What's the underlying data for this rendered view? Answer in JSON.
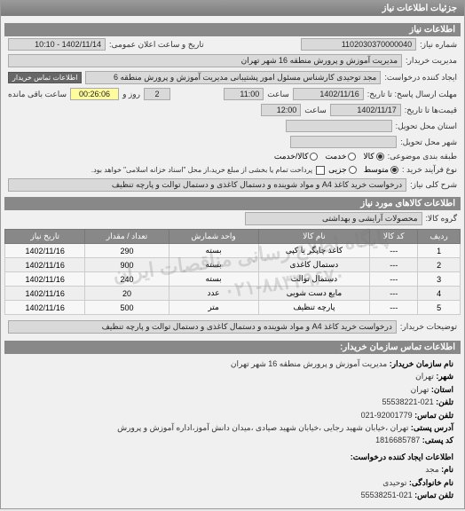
{
  "window_title": "جزئیات اطلاعات نیاز",
  "sections": {
    "need_info": "اطلاعات نیاز",
    "items_info": "اطلاعات کالاهای مورد نیاز",
    "contact_info": "اطلاعات تماس سازمان خریدار:"
  },
  "labels": {
    "request_no": "شماره نیاز:",
    "announce_dt": "تاریخ و ساعت اعلان عمومی:",
    "buyer_mgmt": "مدیریت خریدار:",
    "request_creator": "ایجاد کننده درخواست:",
    "reply_deadline": "مهلت ارسال پاسخ: تا تاریخ:",
    "validity": "قیمت‌ها تا تاریخ:",
    "province": "استان محل تحویل:",
    "city": "شهر محل تحویل:",
    "pkg_class": "طبقه بندی موضوعی:",
    "purchase_type": "نوع فرآیند خرید :",
    "main_desc": "شرح کلی نیاز:",
    "goods_group": "گروه کالا:",
    "buyer_notes": "توضیحات خریدار:",
    "hour": "ساعت",
    "day_and": "روز و",
    "time_left": "ساعت باقی مانده",
    "contact_link": "اطلاعات تماس خریدار"
  },
  "values": {
    "request_no": "1102030370000040",
    "announce_dt": "1402/11/14 - 10:10",
    "buyer_mgmt": "مدیریت آموزش و پرورش منطقه 16 شهر تهران",
    "request_creator": "مجد توحیدی کارشناس مسئول امور پشتیبانی مدیریت آموزش و پرورش منطقه 6",
    "deadline_date": "1402/11/16",
    "deadline_time": "11:00",
    "days_left": "2",
    "time_left": "00:26:06",
    "validity_date": "1402/11/17",
    "validity_time": "12:00",
    "province": "",
    "city": "",
    "purchase_note": "پرداخت تمام یا بخشی از مبلغ خرید،از محل \"اسناد خزانه اسلامی\" خواهد بود.",
    "main_desc": "درخواست خرید کاغذ A4 و مواد شوینده و دستمال کاغذی و دستمال توالت و پارچه تنظیف",
    "goods_group": "محصولات آرایشی و بهداشتی",
    "buyer_notes": "درخواست خرید کاغذ A4 و مواد شوینده و دستمال کاغذی و دستمال توالت و پارچه تنظیف"
  },
  "pkg_options": [
    "کالا",
    "خدمت",
    "کالا/خدمت"
  ],
  "pkg_selected": 0,
  "ptype_options": [
    "متوسط",
    "جزیی"
  ],
  "ptype_selected": 0,
  "table": {
    "headers": [
      "ردیف",
      "کد کالا",
      "نام کالا",
      "واحد شمارش",
      "تعداد / مقدار",
      "تاریخ نیاز"
    ],
    "rows": [
      [
        "1",
        "---",
        "کاغذ چاپگر یا کپی",
        "بسته",
        "290",
        "1402/11/16"
      ],
      [
        "2",
        "---",
        "دستمال کاغذی",
        "بسته",
        "900",
        "1402/11/16"
      ],
      [
        "3",
        "---",
        "دستمال توالت",
        "بسته",
        "240",
        "1402/11/16"
      ],
      [
        "4",
        "---",
        "مایع دست شویی",
        "عدد",
        "20",
        "1402/11/16"
      ],
      [
        "5",
        "---",
        "پارچه تنظیف",
        "متر",
        "500",
        "1402/11/16"
      ]
    ]
  },
  "contact": {
    "org_name_lbl": "نام سازمان خریدار:",
    "org_name": "مدیریت آموزش و پرورش منطقه 16 شهر تهران",
    "city_lbl": "شهر:",
    "city": "تهران",
    "province_lbl": "استان:",
    "province": "تهران",
    "phone_lbl": "تلفن:",
    "phone": "021-55538221",
    "fax_lbl": "تلفن تماس:",
    "fax": "92001779-021",
    "addr_lbl": "آدرس پستی:",
    "addr": "تهران ،خیابان شهید رجایی ،خیابان شهید صیادی ،میدان دانش آموز،اداره آموزش و پرورش",
    "post_lbl": "کد پستی:",
    "post": "1816685787",
    "creator_hdr": "اطلاعات ایجاد کننده درخواست:",
    "name_lbl": "نام:",
    "name": "مجد",
    "family_lbl": "نام خانوادگی:",
    "family": "توحیدی",
    "cphone_lbl": "تلفن تماس:",
    "cphone": "021-55538251"
  },
  "watermark": {
    "line1": "پایگاه اطلاع رسانی مناقصات ایران",
    "line2": "۰۲۱-۸۸۳۴۹۶۷۰"
  }
}
